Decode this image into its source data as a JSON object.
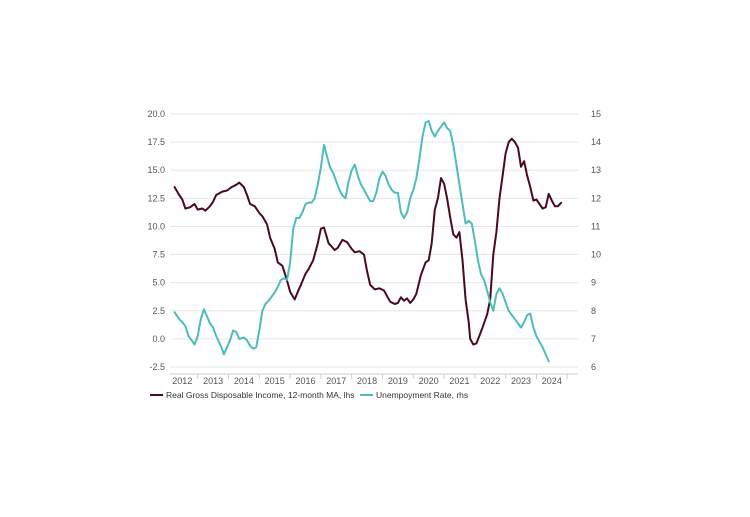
{
  "chart_data": {
    "type": "line",
    "title": "",
    "xlabel": "",
    "ylabel_left": "",
    "ylabel_right": "",
    "ylim_left": [
      -2.5,
      20.0
    ],
    "ylim_right": [
      6,
      15
    ],
    "left_ticks": [
      "-2.5",
      "0.0",
      "2.5",
      "5.0",
      "7.5",
      "10.0",
      "12.5",
      "15.0",
      "17.5",
      "20.0"
    ],
    "left_tick_values": [
      -2.5,
      0,
      2.5,
      5,
      7.5,
      10,
      12.5,
      15,
      17.5,
      20
    ],
    "right_ticks": [
      "6",
      "7",
      "8",
      "9",
      "10",
      "11",
      "12",
      "13",
      "14",
      "15"
    ],
    "right_tick_values": [
      6,
      7,
      8,
      9,
      10,
      11,
      12,
      13,
      14,
      15
    ],
    "x_range": [
      2011.6,
      2024.85
    ],
    "x_ticks": [
      "2012",
      "2013",
      "2014",
      "2015",
      "2016",
      "2017",
      "2018",
      "2019",
      "2020",
      "2021",
      "2022",
      "2023",
      "2024"
    ],
    "x_tick_values": [
      2012,
      2013,
      2014,
      2015,
      2016,
      2017,
      2018,
      2019,
      2020,
      2021,
      2022,
      2023,
      2024
    ],
    "grid": true,
    "legend_position": "bottom",
    "series": [
      {
        "name": "Real Gross Disposable Income, 12-month MA, lhs",
        "axis": "left",
        "color": "#4a0a1e",
        "points": [
          [
            2011.75,
            13.5
          ],
          [
            2011.9,
            12.8
          ],
          [
            2012.0,
            12.4
          ],
          [
            2012.1,
            11.6
          ],
          [
            2012.25,
            11.7
          ],
          [
            2012.4,
            12.0
          ],
          [
            2012.5,
            11.5
          ],
          [
            2012.65,
            11.6
          ],
          [
            2012.75,
            11.4
          ],
          [
            2012.9,
            11.8
          ],
          [
            2013.0,
            12.2
          ],
          [
            2013.1,
            12.8
          ],
          [
            2013.3,
            13.1
          ],
          [
            2013.45,
            13.2
          ],
          [
            2013.6,
            13.5
          ],
          [
            2013.75,
            13.7
          ],
          [
            2013.85,
            13.9
          ],
          [
            2014.0,
            13.5
          ],
          [
            2014.1,
            12.8
          ],
          [
            2014.2,
            12.0
          ],
          [
            2014.35,
            11.8
          ],
          [
            2014.5,
            11.2
          ],
          [
            2014.6,
            10.9
          ],
          [
            2014.75,
            10.2
          ],
          [
            2014.85,
            9.0
          ],
          [
            2015.0,
            8.0
          ],
          [
            2015.1,
            6.8
          ],
          [
            2015.25,
            6.5
          ],
          [
            2015.4,
            5.2
          ],
          [
            2015.5,
            4.2
          ],
          [
            2015.65,
            3.5
          ],
          [
            2015.75,
            4.2
          ],
          [
            2015.85,
            4.8
          ],
          [
            2016.0,
            5.8
          ],
          [
            2016.1,
            6.2
          ],
          [
            2016.25,
            7.0
          ],
          [
            2016.4,
            8.5
          ],
          [
            2016.5,
            9.8
          ],
          [
            2016.6,
            9.9
          ],
          [
            2016.75,
            8.5
          ],
          [
            2016.85,
            8.2
          ],
          [
            2016.95,
            7.9
          ],
          [
            2017.05,
            8.1
          ],
          [
            2017.2,
            8.8
          ],
          [
            2017.35,
            8.6
          ],
          [
            2017.5,
            8.0
          ],
          [
            2017.6,
            7.7
          ],
          [
            2017.75,
            7.8
          ],
          [
            2017.9,
            7.5
          ],
          [
            2018.0,
            6.0
          ],
          [
            2018.1,
            4.8
          ],
          [
            2018.25,
            4.4
          ],
          [
            2018.4,
            4.5
          ],
          [
            2018.55,
            4.3
          ],
          [
            2018.75,
            3.3
          ],
          [
            2018.9,
            3.1
          ],
          [
            2019.0,
            3.2
          ],
          [
            2019.1,
            3.7
          ],
          [
            2019.2,
            3.4
          ],
          [
            2019.3,
            3.6
          ],
          [
            2019.4,
            3.2
          ],
          [
            2019.5,
            3.5
          ],
          [
            2019.6,
            4.0
          ],
          [
            2019.75,
            5.7
          ],
          [
            2019.9,
            6.8
          ],
          [
            2020.0,
            7.0
          ],
          [
            2020.1,
            8.5
          ],
          [
            2020.2,
            11.5
          ],
          [
            2020.3,
            12.5
          ],
          [
            2020.4,
            14.3
          ],
          [
            2020.5,
            13.8
          ],
          [
            2020.6,
            12.5
          ],
          [
            2020.7,
            10.8
          ],
          [
            2020.8,
            9.3
          ],
          [
            2020.9,
            9.0
          ],
          [
            2021.0,
            9.5
          ],
          [
            2021.1,
            7.0
          ],
          [
            2021.2,
            3.5
          ],
          [
            2021.3,
            1.5
          ],
          [
            2021.35,
            0.0
          ],
          [
            2021.45,
            -0.5
          ],
          [
            2021.55,
            -0.4
          ],
          [
            2021.65,
            0.3
          ],
          [
            2021.75,
            1.0
          ],
          [
            2021.9,
            2.2
          ],
          [
            2022.0,
            3.5
          ],
          [
            2022.1,
            7.5
          ],
          [
            2022.2,
            9.5
          ],
          [
            2022.3,
            12.5
          ],
          [
            2022.4,
            14.5
          ],
          [
            2022.5,
            16.5
          ],
          [
            2022.6,
            17.5
          ],
          [
            2022.7,
            17.8
          ],
          [
            2022.8,
            17.5
          ],
          [
            2022.9,
            17.0
          ],
          [
            2023.0,
            15.3
          ],
          [
            2023.1,
            15.8
          ],
          [
            2023.2,
            14.5
          ],
          [
            2023.3,
            13.5
          ],
          [
            2023.4,
            12.3
          ],
          [
            2023.5,
            12.4
          ],
          [
            2023.6,
            12.0
          ],
          [
            2023.7,
            11.6
          ],
          [
            2023.8,
            11.7
          ],
          [
            2023.9,
            12.9
          ],
          [
            2024.0,
            12.3
          ],
          [
            2024.1,
            11.8
          ],
          [
            2024.2,
            11.8
          ],
          [
            2024.3,
            12.1
          ]
        ]
      },
      {
        "name": "Unempoyment Rate, rhs",
        "axis": "right",
        "color": "#4dbdbb",
        "points": [
          [
            2011.75,
            7.95
          ],
          [
            2011.9,
            7.7
          ],
          [
            2012.0,
            7.6
          ],
          [
            2012.1,
            7.45
          ],
          [
            2012.2,
            7.1
          ],
          [
            2012.3,
            6.95
          ],
          [
            2012.4,
            6.8
          ],
          [
            2012.5,
            7.1
          ],
          [
            2012.6,
            7.7
          ],
          [
            2012.7,
            8.05
          ],
          [
            2012.8,
            7.8
          ],
          [
            2012.9,
            7.55
          ],
          [
            2013.0,
            7.4
          ],
          [
            2013.1,
            7.1
          ],
          [
            2013.25,
            6.75
          ],
          [
            2013.35,
            6.45
          ],
          [
            2013.45,
            6.7
          ],
          [
            2013.55,
            6.95
          ],
          [
            2013.65,
            7.3
          ],
          [
            2013.75,
            7.25
          ],
          [
            2013.85,
            7.0
          ],
          [
            2014.0,
            7.05
          ],
          [
            2014.1,
            6.95
          ],
          [
            2014.2,
            6.75
          ],
          [
            2014.3,
            6.65
          ],
          [
            2014.4,
            6.7
          ],
          [
            2014.5,
            7.3
          ],
          [
            2014.6,
            8.0
          ],
          [
            2014.7,
            8.25
          ],
          [
            2014.8,
            8.35
          ],
          [
            2014.9,
            8.5
          ],
          [
            2015.0,
            8.65
          ],
          [
            2015.1,
            8.85
          ],
          [
            2015.2,
            9.1
          ],
          [
            2015.3,
            9.15
          ],
          [
            2015.4,
            9.1
          ],
          [
            2015.5,
            9.7
          ],
          [
            2015.6,
            10.9
          ],
          [
            2015.7,
            11.3
          ],
          [
            2015.8,
            11.3
          ],
          [
            2015.9,
            11.5
          ],
          [
            2016.0,
            11.8
          ],
          [
            2016.1,
            11.85
          ],
          [
            2016.2,
            11.85
          ],
          [
            2016.3,
            12.0
          ],
          [
            2016.4,
            12.5
          ],
          [
            2016.5,
            13.1
          ],
          [
            2016.6,
            13.9
          ],
          [
            2016.7,
            13.5
          ],
          [
            2016.8,
            13.1
          ],
          [
            2016.9,
            12.9
          ],
          [
            2017.0,
            12.6
          ],
          [
            2017.1,
            12.3
          ],
          [
            2017.2,
            12.1
          ],
          [
            2017.3,
            12.0
          ],
          [
            2017.4,
            12.6
          ],
          [
            2017.5,
            13.0
          ],
          [
            2017.6,
            13.2
          ],
          [
            2017.7,
            12.8
          ],
          [
            2017.8,
            12.5
          ],
          [
            2017.9,
            12.3
          ],
          [
            2018.0,
            12.1
          ],
          [
            2018.1,
            11.9
          ],
          [
            2018.2,
            11.9
          ],
          [
            2018.3,
            12.2
          ],
          [
            2018.4,
            12.7
          ],
          [
            2018.5,
            12.95
          ],
          [
            2018.6,
            12.8
          ],
          [
            2018.7,
            12.5
          ],
          [
            2018.8,
            12.3
          ],
          [
            2018.9,
            12.2
          ],
          [
            2019.0,
            12.2
          ],
          [
            2019.1,
            11.5
          ],
          [
            2019.2,
            11.3
          ],
          [
            2019.3,
            11.5
          ],
          [
            2019.4,
            12.0
          ],
          [
            2019.5,
            12.3
          ],
          [
            2019.6,
            12.7
          ],
          [
            2019.7,
            13.4
          ],
          [
            2019.8,
            14.2
          ],
          [
            2019.9,
            14.7
          ],
          [
            2020.0,
            14.75
          ],
          [
            2020.1,
            14.4
          ],
          [
            2020.2,
            14.2
          ],
          [
            2020.3,
            14.4
          ],
          [
            2020.4,
            14.55
          ],
          [
            2020.5,
            14.7
          ],
          [
            2020.6,
            14.5
          ],
          [
            2020.7,
            14.4
          ],
          [
            2020.8,
            13.9
          ],
          [
            2020.9,
            13.2
          ],
          [
            2021.0,
            12.5
          ],
          [
            2021.1,
            11.8
          ],
          [
            2021.2,
            11.1
          ],
          [
            2021.3,
            11.2
          ],
          [
            2021.4,
            11.1
          ],
          [
            2021.5,
            10.5
          ],
          [
            2021.6,
            9.8
          ],
          [
            2021.7,
            9.3
          ],
          [
            2021.8,
            9.1
          ],
          [
            2021.9,
            8.7
          ],
          [
            2022.0,
            8.3
          ],
          [
            2022.1,
            8.0
          ],
          [
            2022.2,
            8.6
          ],
          [
            2022.3,
            8.8
          ],
          [
            2022.4,
            8.6
          ],
          [
            2022.5,
            8.3
          ],
          [
            2022.6,
            8.0
          ],
          [
            2022.7,
            7.85
          ],
          [
            2022.8,
            7.7
          ],
          [
            2022.9,
            7.55
          ],
          [
            2023.0,
            7.4
          ],
          [
            2023.1,
            7.6
          ],
          [
            2023.2,
            7.85
          ],
          [
            2023.3,
            7.9
          ],
          [
            2023.4,
            7.4
          ],
          [
            2023.5,
            7.1
          ],
          [
            2023.6,
            6.9
          ],
          [
            2023.7,
            6.7
          ],
          [
            2023.8,
            6.45
          ],
          [
            2023.9,
            6.2
          ]
        ]
      }
    ]
  }
}
